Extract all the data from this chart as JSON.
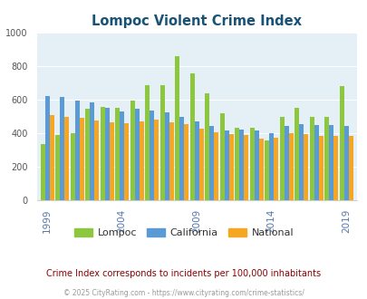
{
  "title": "Lompoc Violent Crime Index",
  "title_color": "#1a5276",
  "subtitle": "Crime Index corresponds to incidents per 100,000 inhabitants",
  "subtitle_color": "#8b0000",
  "copyright": "© 2025 CityRating.com - https://www.cityrating.com/crime-statistics/",
  "copyright_color": "#999999",
  "years": [
    1999,
    2000,
    2001,
    2002,
    2003,
    2004,
    2005,
    2006,
    2007,
    2008,
    2009,
    2010,
    2011,
    2012,
    2013,
    2014,
    2015,
    2016,
    2017,
    2018,
    2019
  ],
  "lompoc": [
    335,
    390,
    400,
    545,
    560,
    550,
    595,
    690,
    690,
    860,
    760,
    640,
    520,
    435,
    435,
    360,
    500,
    555,
    498,
    500,
    680
  ],
  "california": [
    625,
    615,
    598,
    585,
    555,
    530,
    545,
    535,
    525,
    500,
    470,
    445,
    415,
    420,
    415,
    400,
    445,
    455,
    448,
    450,
    445
  ],
  "national": [
    510,
    500,
    495,
    475,
    465,
    460,
    470,
    480,
    465,
    455,
    430,
    405,
    395,
    390,
    368,
    375,
    400,
    395,
    385,
    385,
    385
  ],
  "lompoc_color": "#8dc63f",
  "california_color": "#5b9bd5",
  "national_color": "#f5a623",
  "bg_color": "#e4f0f6",
  "ylim": [
    0,
    1000
  ],
  "yticks": [
    0,
    200,
    400,
    600,
    800,
    1000
  ],
  "xtick_years": [
    1999,
    2004,
    2009,
    2014,
    2019
  ],
  "bar_width": 0.3,
  "legend_labels": [
    "Lompoc",
    "California",
    "National"
  ]
}
